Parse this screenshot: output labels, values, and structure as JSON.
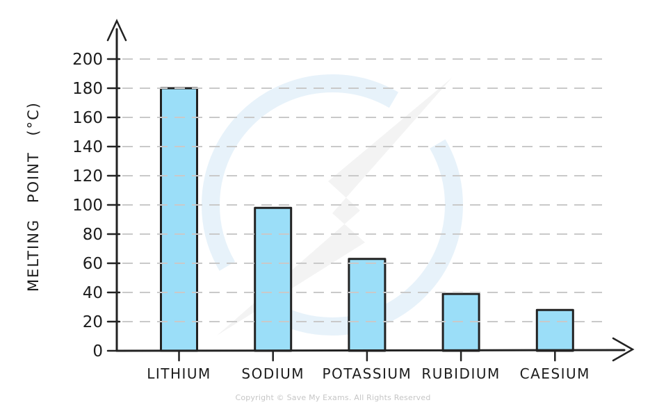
{
  "chart_data": {
    "type": "bar",
    "title": "",
    "ylabel": "MELTING POINT (°C)",
    "xlabel": "",
    "categories": [
      "LITHIUM",
      "SODIUM",
      "POTASSIUM",
      "RUBIDIUM",
      "CAESIUM"
    ],
    "values": [
      180,
      98,
      63,
      39,
      28
    ],
    "units": "°C",
    "ylim": [
      0,
      200
    ],
    "yticks": [
      0,
      20,
      40,
      60,
      80,
      100,
      120,
      140,
      160,
      180,
      200
    ],
    "grid": "horizontal-dashed",
    "legend": "none",
    "colors": {
      "bar_fill": "#9bdef8",
      "bar_border": "#222222",
      "axis": "#222222",
      "gridline": "#c9c9c9",
      "tick_label": "#1c1c1c",
      "watermark_ring": "#e7f2fa",
      "watermark_bolt": "#f3f3f3"
    }
  },
  "watermark": {
    "icon": "save-my-exams-bolt-logo-watermark"
  },
  "footer": {
    "copyright": "Copyright © Save My Exams. All Rights Reserved",
    "color": "#c6c6c6"
  }
}
